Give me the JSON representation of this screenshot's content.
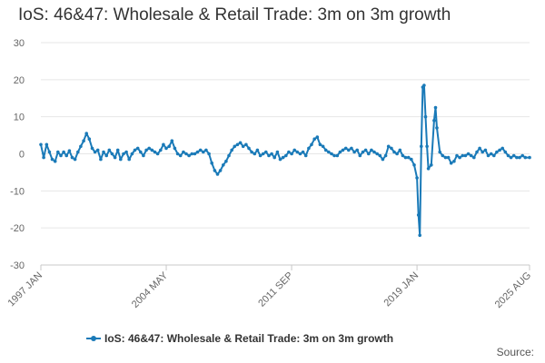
{
  "chart_data": {
    "type": "line",
    "title": "IoS: 46&47: Wholesale & Retail Trade: 3m on 3m growth",
    "xlabel": "",
    "ylabel": "",
    "ylim": [
      -30,
      30
    ],
    "yticks": [
      30,
      20,
      10,
      0,
      -10,
      -20,
      -30
    ],
    "x_range": [
      "1997 JAN",
      "2025 AUG"
    ],
    "xticks": [
      "1997 JAN",
      "2004 MAY",
      "2011 SEP",
      "2019 JAN",
      "2025 AUG"
    ],
    "grid": true,
    "legend_position": "bottom",
    "series": [
      {
        "name": "IoS: 46&47: Wholesale & Retail Trade: 3m on 3m growth",
        "color": "#1a7ab8",
        "marker": "circle",
        "points": [
          [
            "1997 JAN",
            2.5
          ],
          [
            "1997 MAR",
            -1.0
          ],
          [
            "1997 MAY",
            2.5
          ],
          [
            "1997 JUL",
            0.5
          ],
          [
            "1997 SEP",
            -1.5
          ],
          [
            "1997 NOV",
            -2.0
          ],
          [
            "1998 JAN",
            0.5
          ],
          [
            "1998 MAR",
            -0.5
          ],
          [
            "1998 MAY",
            0.5
          ],
          [
            "1998 JUL",
            -0.5
          ],
          [
            "1998 SEP",
            0.8
          ],
          [
            "1998 NOV",
            -1.0
          ],
          [
            "1999 JAN",
            -1.5
          ],
          [
            "1999 MAR",
            0.5
          ],
          [
            "1999 MAY",
            2.0
          ],
          [
            "1999 JUL",
            3.5
          ],
          [
            "1999 SEP",
            5.5
          ],
          [
            "1999 NOV",
            4.0
          ],
          [
            "2000 JAN",
            1.5
          ],
          [
            "2000 MAR",
            0.5
          ],
          [
            "2000 MAY",
            1.0
          ],
          [
            "2000 JUL",
            -1.5
          ],
          [
            "2000 SEP",
            0.5
          ],
          [
            "2000 NOV",
            -0.5
          ],
          [
            "2001 JAN",
            1.0
          ],
          [
            "2001 MAR",
            0.0
          ],
          [
            "2001 MAY",
            -1.0
          ],
          [
            "2001 JUL",
            1.0
          ],
          [
            "2001 SEP",
            -1.5
          ],
          [
            "2001 NOV",
            0.0
          ],
          [
            "2002 JAN",
            0.5
          ],
          [
            "2002 MAR",
            -1.5
          ],
          [
            "2002 MAY",
            0.0
          ],
          [
            "2002 JUL",
            1.0
          ],
          [
            "2002 SEP",
            1.5
          ],
          [
            "2002 NOV",
            0.5
          ],
          [
            "2003 JAN",
            -0.5
          ],
          [
            "2003 MAR",
            1.0
          ],
          [
            "2003 MAY",
            1.5
          ],
          [
            "2003 JUL",
            1.0
          ],
          [
            "2003 SEP",
            0.5
          ],
          [
            "2003 NOV",
            0.0
          ],
          [
            "2004 JAN",
            1.0
          ],
          [
            "2004 MAR",
            2.5
          ],
          [
            "2004 MAY",
            1.5
          ],
          [
            "2004 JUL",
            2.0
          ],
          [
            "2004 SEP",
            3.5
          ],
          [
            "2004 NOV",
            1.5
          ],
          [
            "2005 JAN",
            0.0
          ],
          [
            "2005 MAR",
            -0.5
          ],
          [
            "2005 MAY",
            0.5
          ],
          [
            "2005 JUL",
            0.0
          ],
          [
            "2005 SEP",
            -0.5
          ],
          [
            "2005 NOV",
            0.0
          ],
          [
            "2006 JAN",
            0.0
          ],
          [
            "2006 MAR",
            0.5
          ],
          [
            "2006 MAY",
            1.0
          ],
          [
            "2006 JUL",
            0.5
          ],
          [
            "2006 SEP",
            1.0
          ],
          [
            "2006 NOV",
            0.0
          ],
          [
            "2007 JAN",
            -2.5
          ],
          [
            "2007 MAR",
            -4.5
          ],
          [
            "2007 MAY",
            -5.5
          ],
          [
            "2007 JUL",
            -4.5
          ],
          [
            "2007 SEP",
            -3.0
          ],
          [
            "2007 NOV",
            -2.0
          ],
          [
            "2008 JAN",
            -0.5
          ],
          [
            "2008 MAR",
            1.0
          ],
          [
            "2008 MAY",
            2.0
          ],
          [
            "2008 JUL",
            2.5
          ],
          [
            "2008 SEP",
            3.0
          ],
          [
            "2008 NOV",
            2.0
          ],
          [
            "2009 JAN",
            2.5
          ],
          [
            "2009 MAR",
            1.5
          ],
          [
            "2009 MAY",
            0.5
          ],
          [
            "2009 JUL",
            0.0
          ],
          [
            "2009 SEP",
            1.0
          ],
          [
            "2009 NOV",
            -0.5
          ],
          [
            "2010 JAN",
            0.0
          ],
          [
            "2010 MAR",
            0.5
          ],
          [
            "2010 MAY",
            -0.5
          ],
          [
            "2010 JUL",
            0.0
          ],
          [
            "2010 SEP",
            -1.0
          ],
          [
            "2010 NOV",
            0.5
          ],
          [
            "2011 JAN",
            -1.5
          ],
          [
            "2011 MAR",
            -1.0
          ],
          [
            "2011 MAY",
            -0.5
          ],
          [
            "2011 JUL",
            0.5
          ],
          [
            "2011 SEP",
            0.0
          ],
          [
            "2011 NOV",
            1.0
          ],
          [
            "2012 JAN",
            0.5
          ],
          [
            "2012 MAR",
            0.0
          ],
          [
            "2012 MAY",
            0.5
          ],
          [
            "2012 JUL",
            -0.5
          ],
          [
            "2012 SEP",
            1.5
          ],
          [
            "2012 NOV",
            2.5
          ],
          [
            "2013 JAN",
            4.0
          ],
          [
            "2013 MAR",
            4.5
          ],
          [
            "2013 MAY",
            2.5
          ],
          [
            "2013 JUL",
            2.0
          ],
          [
            "2013 SEP",
            1.0
          ],
          [
            "2013 NOV",
            0.5
          ],
          [
            "2014 JAN",
            0.0
          ],
          [
            "2014 MAR",
            -0.5
          ],
          [
            "2014 MAY",
            -0.5
          ],
          [
            "2014 JUL",
            0.5
          ],
          [
            "2014 SEP",
            1.0
          ],
          [
            "2014 NOV",
            1.5
          ],
          [
            "2015 JAN",
            1.0
          ],
          [
            "2015 MAR",
            1.5
          ],
          [
            "2015 MAY",
            0.5
          ],
          [
            "2015 JUL",
            1.0
          ],
          [
            "2015 SEP",
            -0.5
          ],
          [
            "2015 NOV",
            0.5
          ],
          [
            "2016 JAN",
            1.0
          ],
          [
            "2016 MAR",
            0.0
          ],
          [
            "2016 MAY",
            1.0
          ],
          [
            "2016 JUL",
            0.5
          ],
          [
            "2016 SEP",
            0.0
          ],
          [
            "2016 NOV",
            -0.5
          ],
          [
            "2017 JAN",
            -1.5
          ],
          [
            "2017 MAR",
            -0.5
          ],
          [
            "2017 MAY",
            2.0
          ],
          [
            "2017 JUL",
            1.5
          ],
          [
            "2017 SEP",
            0.5
          ],
          [
            "2017 NOV",
            0.0
          ],
          [
            "2018 JAN",
            1.0
          ],
          [
            "2018 MAR",
            -0.5
          ],
          [
            "2018 MAY",
            -1.0
          ],
          [
            "2018 JUL",
            -1.0
          ],
          [
            "2018 SEP",
            -1.5
          ],
          [
            "2018 NOV",
            -3.0
          ],
          [
            "2019 JAN",
            -6.5
          ],
          [
            "2019 FEB",
            -16.5
          ],
          [
            "2019 MAR",
            -22.0
          ],
          [
            "2019 APR",
            2.0
          ],
          [
            "2019 MAY",
            18.0
          ],
          [
            "2019 JUN",
            18.5
          ],
          [
            "2019 JUL",
            10.0
          ],
          [
            "2019 AUG",
            2.0
          ],
          [
            "2019 SEP",
            -4.0
          ],
          [
            "2019 NOV",
            -3.0
          ],
          [
            "2020 JAN",
            9.0
          ],
          [
            "2020 FEB",
            12.5
          ],
          [
            "2020 MAR",
            7.0
          ],
          [
            "2020 MAY",
            0.5
          ],
          [
            "2020 JUL",
            -0.5
          ],
          [
            "2020 SEP",
            -1.0
          ],
          [
            "2020 NOV",
            -1.0
          ],
          [
            "2021 JAN",
            -2.5
          ],
          [
            "2021 MAR",
            -2.0
          ],
          [
            "2021 MAY",
            -0.5
          ],
          [
            "2021 JUL",
            -1.0
          ],
          [
            "2021 SEP",
            -0.5
          ],
          [
            "2021 NOV",
            -0.5
          ],
          [
            "2022 JAN",
            0.0
          ],
          [
            "2022 MAR",
            -0.5
          ],
          [
            "2022 MAY",
            -1.0
          ],
          [
            "2022 JUL",
            0.5
          ],
          [
            "2022 SEP",
            1.5
          ],
          [
            "2022 NOV",
            0.5
          ],
          [
            "2023 JAN",
            1.0
          ],
          [
            "2023 MAR",
            -0.5
          ],
          [
            "2023 MAY",
            0.0
          ],
          [
            "2023 JUL",
            -0.5
          ],
          [
            "2023 SEP",
            0.5
          ],
          [
            "2023 NOV",
            1.0
          ],
          [
            "2024 JAN",
            1.5
          ],
          [
            "2024 MAR",
            0.5
          ],
          [
            "2024 MAY",
            -0.5
          ],
          [
            "2024 JUL",
            -1.0
          ],
          [
            "2024 SEP",
            -0.5
          ],
          [
            "2024 NOV",
            -1.0
          ],
          [
            "2025 JAN",
            -1.0
          ],
          [
            "2025 MAR",
            -0.5
          ],
          [
            "2025 MAY",
            -1.0
          ],
          [
            "2025 AUG",
            -1.0
          ]
        ]
      }
    ]
  },
  "footer": {
    "source_label": "Source:"
  }
}
